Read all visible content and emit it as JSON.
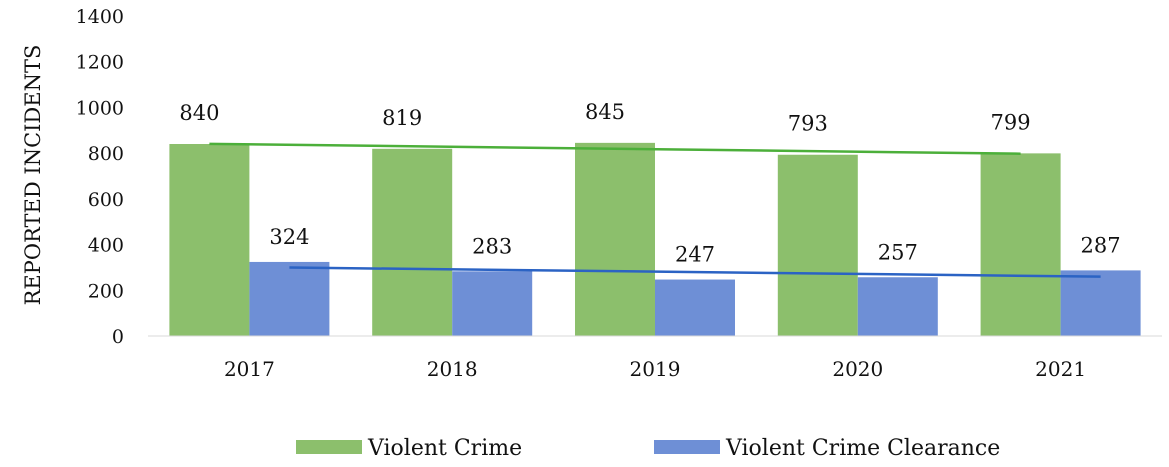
{
  "chart_data": {
    "type": "bar",
    "title": "",
    "xlabel": "",
    "ylabel": "REPORTED INCIDENTS",
    "categories": [
      "2017",
      "2018",
      "2019",
      "2020",
      "2021"
    ],
    "ylim": [
      0,
      1400
    ],
    "yticks": [
      0,
      200,
      400,
      600,
      800,
      1000,
      1200,
      1400
    ],
    "grid": false,
    "legend_position": "bottom",
    "series": [
      {
        "name": "Violent Crime",
        "values": [
          840,
          819,
          845,
          793,
          799
        ],
        "color": "#8cbf6c",
        "trendline_color": "#4caf3a"
      },
      {
        "name": "Violent Crime Clearance",
        "values": [
          324,
          283,
          247,
          257,
          287
        ],
        "color": "#6e8fd6",
        "trendline_color": "#2b63c4"
      }
    ],
    "trendlines": "linear"
  }
}
